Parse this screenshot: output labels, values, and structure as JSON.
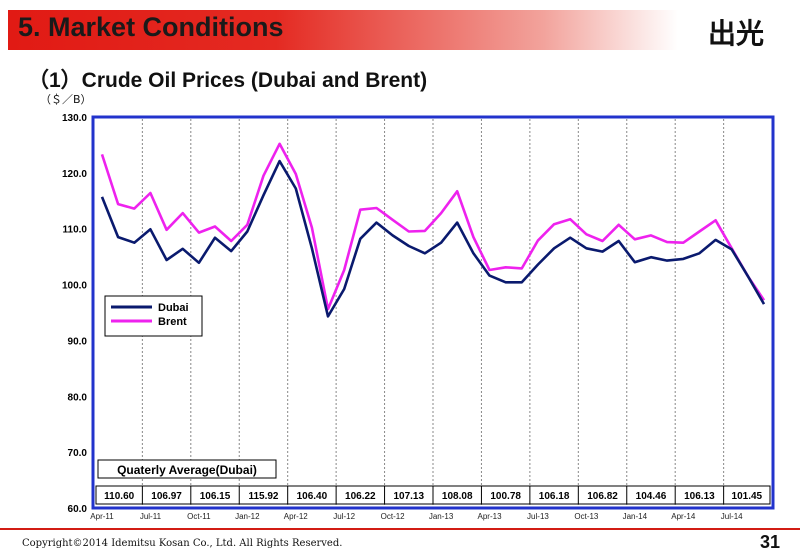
{
  "header": {
    "title": "5. Market Conditions",
    "logo": "出光"
  },
  "subtitle": "（1）Crude Oil Prices (Dubai and Brent)",
  "unit_label": "（＄／B）",
  "footer": {
    "copyright": "Copyright©2014  Idemitsu Kosan Co., Ltd. All Rights Reserved.",
    "page_number": "31"
  },
  "colors": {
    "dubai": "#0a1a6e",
    "brent": "#ee22ee",
    "frame": "#2233cc",
    "title_red": "#e11a14"
  },
  "chart_data": {
    "type": "line",
    "ylabel": "（＄／B）",
    "ylim": [
      60,
      130
    ],
    "yticks": [
      "60.0",
      "70.0",
      "80.0",
      "90.0",
      "100.0",
      "110.0",
      "120.0",
      "130.0"
    ],
    "xtick_labels": [
      "Apr-11",
      "Jul-11",
      "Oct-11",
      "Jan-12",
      "Apr-12",
      "Jul-12",
      "Oct-12",
      "Jan-13",
      "Apr-13",
      "Jul-13",
      "Oct-13",
      "Jan-14",
      "Apr-14",
      "Jul-14"
    ],
    "grid": "vertical-dashed",
    "legend": {
      "placement": "left",
      "entries": [
        "Dubai",
        "Brent"
      ]
    },
    "series": [
      {
        "name": "Dubai",
        "color": "#0a1a6e",
        "values": [
          115.7,
          108.5,
          107.5,
          109.9,
          104.4,
          106.4,
          103.9,
          108.4,
          106.0,
          109.5,
          116.0,
          122.1,
          117.2,
          106.5,
          94.3,
          99.2,
          108.2,
          111.1,
          108.8,
          106.9,
          105.6,
          107.5,
          111.1,
          105.6,
          101.6,
          100.4,
          100.4,
          103.6,
          106.5,
          108.4,
          106.5,
          105.9,
          107.8,
          104.0,
          104.9,
          104.3,
          104.6,
          105.6,
          108.0,
          106.3,
          101.5,
          96.5
        ]
      },
      {
        "name": "Brent",
        "color": "#ee22ee",
        "values": [
          123.3,
          114.4,
          113.6,
          116.4,
          109.8,
          112.8,
          109.3,
          110.4,
          107.8,
          110.7,
          119.5,
          125.2,
          119.8,
          110.2,
          95.6,
          102.6,
          113.4,
          113.7,
          111.6,
          109.5,
          109.6,
          112.8,
          116.7,
          108.5,
          102.6,
          103.1,
          102.9,
          107.9,
          110.8,
          111.7,
          109.0,
          107.8,
          110.7,
          108.1,
          108.8,
          107.6,
          107.5,
          109.5,
          111.5,
          106.5,
          101.5,
          97.2
        ]
      }
    ],
    "annotation_title": "Quaterly Average(Dubai)",
    "quarterly_averages": [
      "110.60",
      "106.97",
      "106.15",
      "115.92",
      "106.40",
      "106.22",
      "107.13",
      "108.08",
      "100.78",
      "106.18",
      "106.82",
      "104.46",
      "106.13",
      "101.45"
    ]
  }
}
